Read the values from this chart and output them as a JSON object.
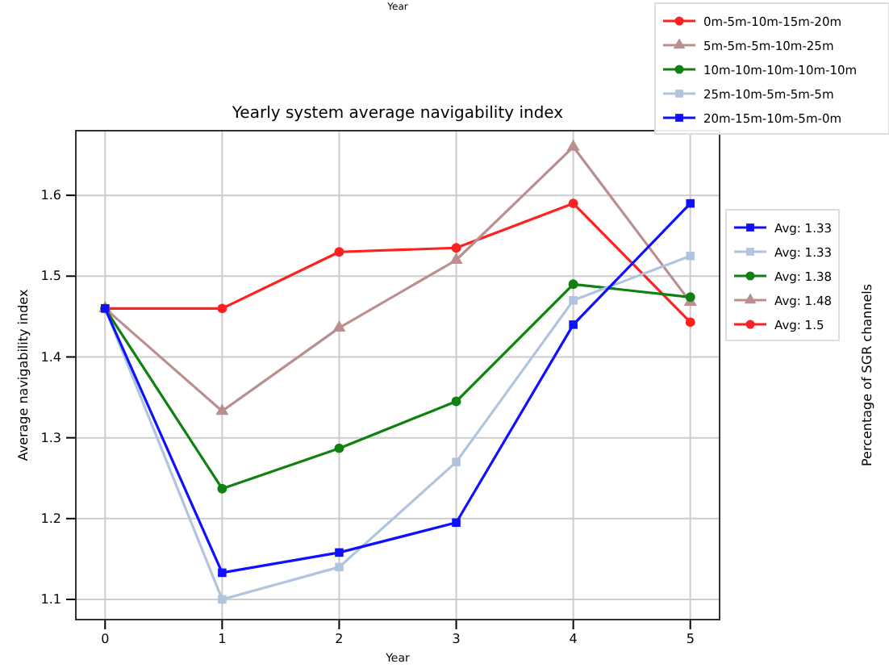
{
  "chart_data": {
    "type": "line",
    "title": "Yearly system average navigability index",
    "xlabel": "Year",
    "ylabel": "Average navigability index",
    "x": [
      0,
      1,
      2,
      3,
      4,
      5
    ],
    "xlim": [
      -0.25,
      5.25
    ],
    "xticks": [
      0,
      1,
      2,
      3,
      4,
      5
    ],
    "ylim": [
      1.075,
      1.68
    ],
    "yticks": [
      1.1,
      1.2,
      1.3,
      1.4,
      1.5,
      1.6
    ],
    "grid": true,
    "legend": "top right",
    "series": [
      {
        "name": "0m-5m-10m-15m-20m",
        "color": "#ff2020",
        "marker": "circle",
        "values": [
          1.46,
          1.46,
          1.53,
          1.535,
          1.59,
          1.443
        ]
      },
      {
        "name": "5m-5m-5m-10m-25m",
        "color": "#bc8f8f",
        "marker": "triangle",
        "values": [
          1.46,
          1.333,
          1.436,
          1.52,
          1.66,
          1.468
        ]
      },
      {
        "name": "10m-10m-10m-10m-10m",
        "color": "#108010",
        "marker": "circle",
        "values": [
          1.46,
          1.237,
          1.287,
          1.345,
          1.49,
          1.474
        ]
      },
      {
        "name": "25m-10m-5m-5m-5m",
        "color": "#b0c4de",
        "marker": "square",
        "values": [
          1.46,
          1.1,
          1.14,
          1.27,
          1.47,
          1.525
        ]
      },
      {
        "name": "20m-15m-10m-5m-0m",
        "color": "#1010ff",
        "marker": "square",
        "values": [
          1.46,
          1.133,
          1.158,
          1.195,
          1.44,
          1.59
        ]
      }
    ],
    "annotations": [
      "Avg: 1.33",
      "Avg: 1.33",
      "Avg: 1.38",
      "Avg: 1.48",
      "Avg: 1.5",
      "Year",
      "Percentage of SGR channels"
    ]
  }
}
